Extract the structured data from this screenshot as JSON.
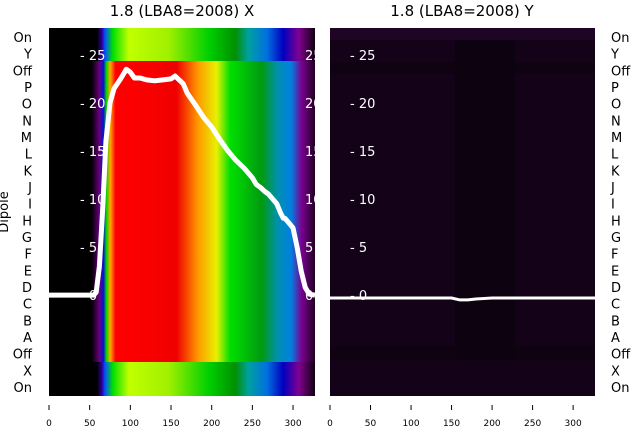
{
  "chart_data": [
    {
      "type": "heatmap",
      "title": "1.8 (LBA8=2008) X",
      "ylabel": "Dipole",
      "row_labels": [
        "On",
        "Y",
        "Off",
        "P",
        "O",
        "N",
        "M",
        "L",
        "K",
        "J",
        "I",
        "H",
        "G",
        "F",
        "E",
        "D",
        "C",
        "B",
        "A",
        "Off",
        "X",
        "On"
      ],
      "x_ticks": [
        "0",
        "50",
        "100",
        "150",
        "200",
        "250",
        "300"
      ],
      "xlim": [
        0,
        327
      ],
      "overlay_y_ticks": [
        "0",
        "5",
        "10",
        "15",
        "20",
        "25"
      ],
      "overlay_ylim": [
        -10.5,
        27.8
      ],
      "line": {
        "x": [
          0,
          55,
          58,
          62,
          66,
          70,
          75,
          80,
          88,
          95,
          100,
          105,
          112,
          120,
          130,
          140,
          150,
          155,
          160,
          165,
          170,
          180,
          190,
          200,
          210,
          220,
          230,
          240,
          250,
          255,
          260,
          265,
          270,
          280,
          285,
          288,
          290,
          295,
          300,
          305,
          310,
          315,
          320,
          327
        ],
        "y": [
          0,
          0,
          0.3,
          3,
          9,
          16,
          20,
          21.5,
          22.5,
          23.5,
          23.2,
          22.6,
          22.6,
          22.4,
          22.3,
          22.4,
          22.5,
          22.8,
          22.4,
          22.0,
          21.0,
          19.8,
          18.5,
          17.5,
          16.2,
          15.0,
          14.0,
          13.2,
          12.2,
          11.5,
          11.2,
          10.8,
          10.5,
          9.5,
          8.5,
          8.0,
          8.0,
          7.5,
          7.0,
          5.0,
          2.5,
          0.8,
          0.1,
          0
        ]
      }
    },
    {
      "type": "heatmap",
      "title": "1.8 (LBA8=2008) Y",
      "row_labels": [
        "On",
        "Y",
        "Off",
        "P",
        "O",
        "N",
        "M",
        "L",
        "K",
        "J",
        "I",
        "H",
        "G",
        "F",
        "E",
        "D",
        "C",
        "B",
        "A",
        "Off",
        "X",
        "On"
      ],
      "x_ticks": [
        "0",
        "50",
        "100",
        "150",
        "200",
        "250",
        "300"
      ],
      "xlim": [
        0,
        327
      ],
      "overlay_y_ticks": [
        "0",
        "5",
        "10",
        "15",
        "20",
        "25"
      ],
      "overlay_ylim": [
        -10.5,
        27.8
      ],
      "line": {
        "x": [
          0,
          50,
          100,
          150,
          160,
          170,
          180,
          200,
          250,
          300,
          327
        ],
        "y": [
          -0.3,
          -0.3,
          -0.3,
          -0.3,
          -0.5,
          -0.5,
          -0.4,
          -0.3,
          -0.3,
          -0.3,
          -0.3
        ]
      }
    }
  ]
}
